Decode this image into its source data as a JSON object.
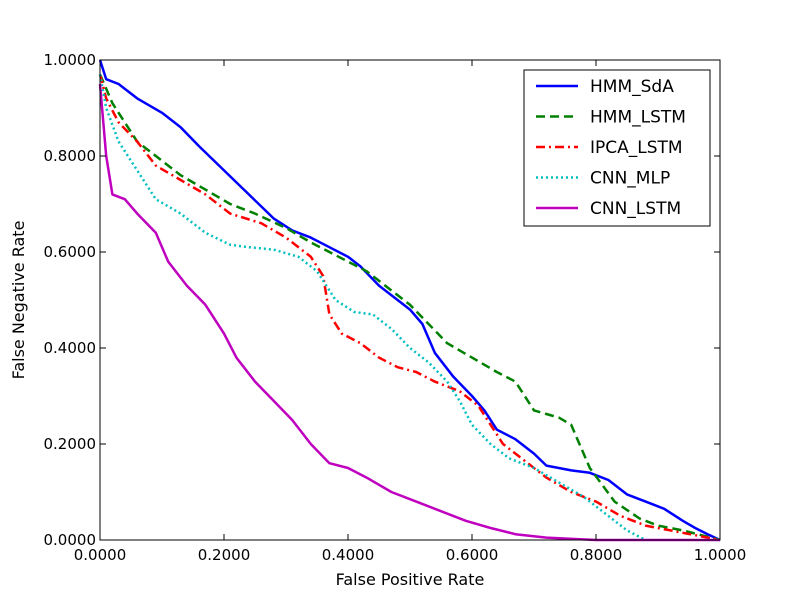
{
  "chart_data": {
    "type": "line",
    "title": "",
    "xlabel": "False Positive Rate",
    "ylabel": "False Negative Rate",
    "xlim": [
      0,
      1
    ],
    "ylim": [
      0,
      1
    ],
    "xticks": [
      "0.0000",
      "0.2000",
      "0.4000",
      "0.6000",
      "0.8000",
      "1.0000"
    ],
    "yticks": [
      "0.0000",
      "0.2000",
      "0.4000",
      "0.6000",
      "0.8000",
      "1.0000"
    ],
    "grid": false,
    "legend_position": "top-right",
    "series": [
      {
        "name": "HMM_SdA",
        "color": "#0000ff",
        "dash": "solid",
        "points": [
          [
            0,
            1.0
          ],
          [
            0.005,
            0.98
          ],
          [
            0.01,
            0.96
          ],
          [
            0.03,
            0.95
          ],
          [
            0.06,
            0.92
          ],
          [
            0.1,
            0.89
          ],
          [
            0.13,
            0.86
          ],
          [
            0.16,
            0.82
          ],
          [
            0.2,
            0.77
          ],
          [
            0.24,
            0.72
          ],
          [
            0.28,
            0.67
          ],
          [
            0.31,
            0.645
          ],
          [
            0.34,
            0.63
          ],
          [
            0.37,
            0.61
          ],
          [
            0.4,
            0.59
          ],
          [
            0.42,
            0.57
          ],
          [
            0.45,
            0.53
          ],
          [
            0.48,
            0.5
          ],
          [
            0.5,
            0.48
          ],
          [
            0.52,
            0.45
          ],
          [
            0.54,
            0.39
          ],
          [
            0.57,
            0.34
          ],
          [
            0.6,
            0.3
          ],
          [
            0.62,
            0.27
          ],
          [
            0.64,
            0.23
          ],
          [
            0.67,
            0.21
          ],
          [
            0.7,
            0.18
          ],
          [
            0.72,
            0.155
          ],
          [
            0.76,
            0.145
          ],
          [
            0.79,
            0.14
          ],
          [
            0.82,
            0.125
          ],
          [
            0.85,
            0.095
          ],
          [
            0.88,
            0.08
          ],
          [
            0.91,
            0.065
          ],
          [
            0.94,
            0.04
          ],
          [
            0.96,
            0.025
          ],
          [
            0.98,
            0.012
          ],
          [
            1.0,
            0.0
          ]
        ]
      },
      {
        "name": "HMM_LSTM",
        "color": "#008000",
        "dash": "dashed",
        "points": [
          [
            0,
            0.97
          ],
          [
            0.01,
            0.94
          ],
          [
            0.02,
            0.91
          ],
          [
            0.04,
            0.87
          ],
          [
            0.06,
            0.83
          ],
          [
            0.1,
            0.79
          ],
          [
            0.13,
            0.76
          ],
          [
            0.17,
            0.73
          ],
          [
            0.21,
            0.7
          ],
          [
            0.25,
            0.68
          ],
          [
            0.3,
            0.65
          ],
          [
            0.34,
            0.62
          ],
          [
            0.37,
            0.6
          ],
          [
            0.4,
            0.58
          ],
          [
            0.43,
            0.56
          ],
          [
            0.46,
            0.53
          ],
          [
            0.5,
            0.49
          ],
          [
            0.53,
            0.45
          ],
          [
            0.56,
            0.41
          ],
          [
            0.6,
            0.38
          ],
          [
            0.64,
            0.35
          ],
          [
            0.67,
            0.33
          ],
          [
            0.7,
            0.27
          ],
          [
            0.74,
            0.255
          ],
          [
            0.76,
            0.24
          ],
          [
            0.79,
            0.15
          ],
          [
            0.83,
            0.08
          ],
          [
            0.87,
            0.045
          ],
          [
            0.9,
            0.03
          ],
          [
            0.94,
            0.02
          ],
          [
            0.97,
            0.01
          ],
          [
            1.0,
            0.0
          ]
        ]
      },
      {
        "name": "IPCA_LSTM",
        "color": "#ff0000",
        "dash": "dashdot",
        "points": [
          [
            0,
            0.97
          ],
          [
            0.01,
            0.92
          ],
          [
            0.03,
            0.87
          ],
          [
            0.06,
            0.83
          ],
          [
            0.09,
            0.78
          ],
          [
            0.13,
            0.75
          ],
          [
            0.17,
            0.72
          ],
          [
            0.21,
            0.68
          ],
          [
            0.26,
            0.66
          ],
          [
            0.3,
            0.63
          ],
          [
            0.34,
            0.59
          ],
          [
            0.36,
            0.55
          ],
          [
            0.37,
            0.47
          ],
          [
            0.39,
            0.43
          ],
          [
            0.42,
            0.41
          ],
          [
            0.45,
            0.38
          ],
          [
            0.48,
            0.36
          ],
          [
            0.51,
            0.35
          ],
          [
            0.54,
            0.33
          ],
          [
            0.58,
            0.31
          ],
          [
            0.61,
            0.28
          ],
          [
            0.63,
            0.24
          ],
          [
            0.65,
            0.2
          ],
          [
            0.68,
            0.17
          ],
          [
            0.72,
            0.13
          ],
          [
            0.76,
            0.1
          ],
          [
            0.8,
            0.08
          ],
          [
            0.84,
            0.05
          ],
          [
            0.88,
            0.03
          ],
          [
            0.92,
            0.02
          ],
          [
            0.96,
            0.01
          ],
          [
            1.0,
            0.0
          ]
        ]
      },
      {
        "name": "CNN_MLP",
        "color": "#00bfbf",
        "dash": "dotted",
        "points": [
          [
            0,
            0.97
          ],
          [
            0.01,
            0.9
          ],
          [
            0.03,
            0.83
          ],
          [
            0.06,
            0.77
          ],
          [
            0.09,
            0.71
          ],
          [
            0.13,
            0.68
          ],
          [
            0.17,
            0.64
          ],
          [
            0.21,
            0.615
          ],
          [
            0.24,
            0.61
          ],
          [
            0.28,
            0.605
          ],
          [
            0.32,
            0.59
          ],
          [
            0.35,
            0.56
          ],
          [
            0.38,
            0.5
          ],
          [
            0.41,
            0.475
          ],
          [
            0.44,
            0.47
          ],
          [
            0.47,
            0.44
          ],
          [
            0.5,
            0.4
          ],
          [
            0.53,
            0.37
          ],
          [
            0.56,
            0.33
          ],
          [
            0.58,
            0.29
          ],
          [
            0.6,
            0.24
          ],
          [
            0.63,
            0.2
          ],
          [
            0.66,
            0.17
          ],
          [
            0.7,
            0.15
          ],
          [
            0.74,
            0.12
          ],
          [
            0.78,
            0.09
          ],
          [
            0.82,
            0.05
          ],
          [
            0.85,
            0.02
          ],
          [
            0.88,
            0.0
          ]
        ]
      },
      {
        "name": "CNN_LSTM",
        "color": "#bf00bf",
        "dash": "solid",
        "points": [
          [
            0,
            0.95
          ],
          [
            0.01,
            0.8
          ],
          [
            0.02,
            0.72
          ],
          [
            0.04,
            0.71
          ],
          [
            0.06,
            0.68
          ],
          [
            0.09,
            0.64
          ],
          [
            0.11,
            0.58
          ],
          [
            0.14,
            0.53
          ],
          [
            0.17,
            0.49
          ],
          [
            0.2,
            0.43
          ],
          [
            0.22,
            0.38
          ],
          [
            0.25,
            0.33
          ],
          [
            0.28,
            0.29
          ],
          [
            0.31,
            0.25
          ],
          [
            0.34,
            0.2
          ],
          [
            0.37,
            0.16
          ],
          [
            0.4,
            0.15
          ],
          [
            0.43,
            0.13
          ],
          [
            0.47,
            0.1
          ],
          [
            0.51,
            0.08
          ],
          [
            0.55,
            0.06
          ],
          [
            0.59,
            0.04
          ],
          [
            0.63,
            0.025
          ],
          [
            0.67,
            0.012
          ],
          [
            0.72,
            0.005
          ],
          [
            0.8,
            0.0
          ],
          [
            1.0,
            0.0
          ]
        ]
      }
    ]
  }
}
